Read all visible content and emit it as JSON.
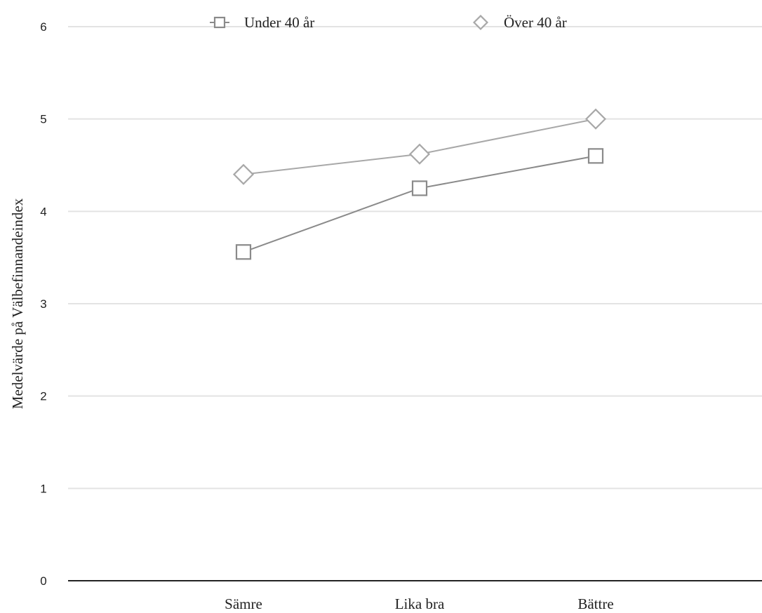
{
  "chart_data": {
    "type": "line",
    "title": "",
    "xlabel": "",
    "ylabel": "Medelvärde på Välbefinnandeindex",
    "categories": [
      "Sämre",
      "Lika bra",
      "Bättre"
    ],
    "ylim": [
      0,
      6
    ],
    "yticks": [
      "0",
      "1",
      "2",
      "3",
      "4",
      "5",
      "6"
    ],
    "grid": true,
    "legend_position": "top-center",
    "series": [
      {
        "name": "Under 40 år",
        "marker": "square",
        "color": "#8a8a8a",
        "values": [
          3.56,
          4.25,
          4.6
        ]
      },
      {
        "name": "Över 40 år",
        "marker": "diamond",
        "color": "#a8a8a8",
        "values": [
          4.4,
          4.62,
          5.0
        ]
      }
    ]
  }
}
